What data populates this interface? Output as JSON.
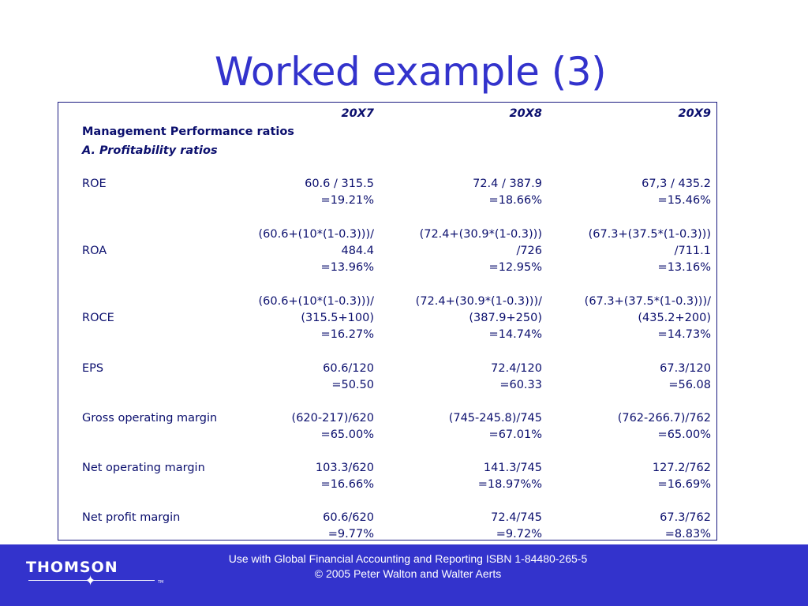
{
  "title": "Worked example (3)",
  "table": {
    "col_headers": [
      "20X7",
      "20X8",
      "20X9"
    ],
    "section_heading": "Management Performance ratios",
    "subsection_heading": "A. Profitability ratios",
    "rows": {
      "roe": {
        "label": "ROE",
        "calc": [
          "60.6 / 315.5",
          "72.4 / 387.9",
          "67,3 / 435.2"
        ],
        "result": [
          "=19.21%",
          "=18.66%",
          "=15.46%"
        ]
      },
      "roa": {
        "label": "ROA",
        "calc_line1": [
          "(60.6+(10*(1-0.3)))/",
          "(72.4+(30.9*(1-0.3)))",
          "(67.3+(37.5*(1-0.3)))"
        ],
        "calc_line2": [
          "484.4",
          "/726",
          "/711.1"
        ],
        "result": [
          "=13.96%",
          "=12.95%",
          "=13.16%"
        ]
      },
      "roce": {
        "label": "ROCE",
        "calc_line1": [
          "(60.6+(10*(1-0.3)))/",
          "(72.4+(30.9*(1-0.3)))/",
          "(67.3+(37.5*(1-0.3)))/"
        ],
        "calc_line2": [
          "(315.5+100)",
          "(387.9+250)",
          "(435.2+200)"
        ],
        "result": [
          "=16.27%",
          "=14.74%",
          "=14.73%"
        ]
      },
      "eps": {
        "label": "EPS",
        "calc": [
          "60.6/120",
          "72.4/120",
          "67.3/120"
        ],
        "result": [
          "=50.50",
          "=60.33",
          "=56.08"
        ]
      },
      "gom": {
        "label": "Gross operating margin",
        "calc": [
          "(620-217)/620",
          "(745-245.8)/745",
          "(762-266.7)/762"
        ],
        "result": [
          "=65.00%",
          "=67.01%",
          "=65.00%"
        ]
      },
      "nom": {
        "label": "Net operating margin",
        "calc": [
          "103.3/620",
          "141.3/745",
          "127.2/762"
        ],
        "result": [
          "=16.66%",
          "=18.97%%",
          "=16.69%"
        ]
      },
      "npm": {
        "label": "Net profit margin",
        "calc": [
          "60.6/620",
          "72.4/745",
          "67.3/762"
        ],
        "result": [
          "=9.77%",
          "=9.72%",
          "=8.83%"
        ]
      }
    }
  },
  "footer": {
    "logo_text": "THOMSON",
    "logo_mark": "TM",
    "line1": "Use with Global Financial Accounting and Reporting ISBN 1-84480-265-5",
    "line2": "© 2005 Peter Walton and Walter Aerts"
  }
}
